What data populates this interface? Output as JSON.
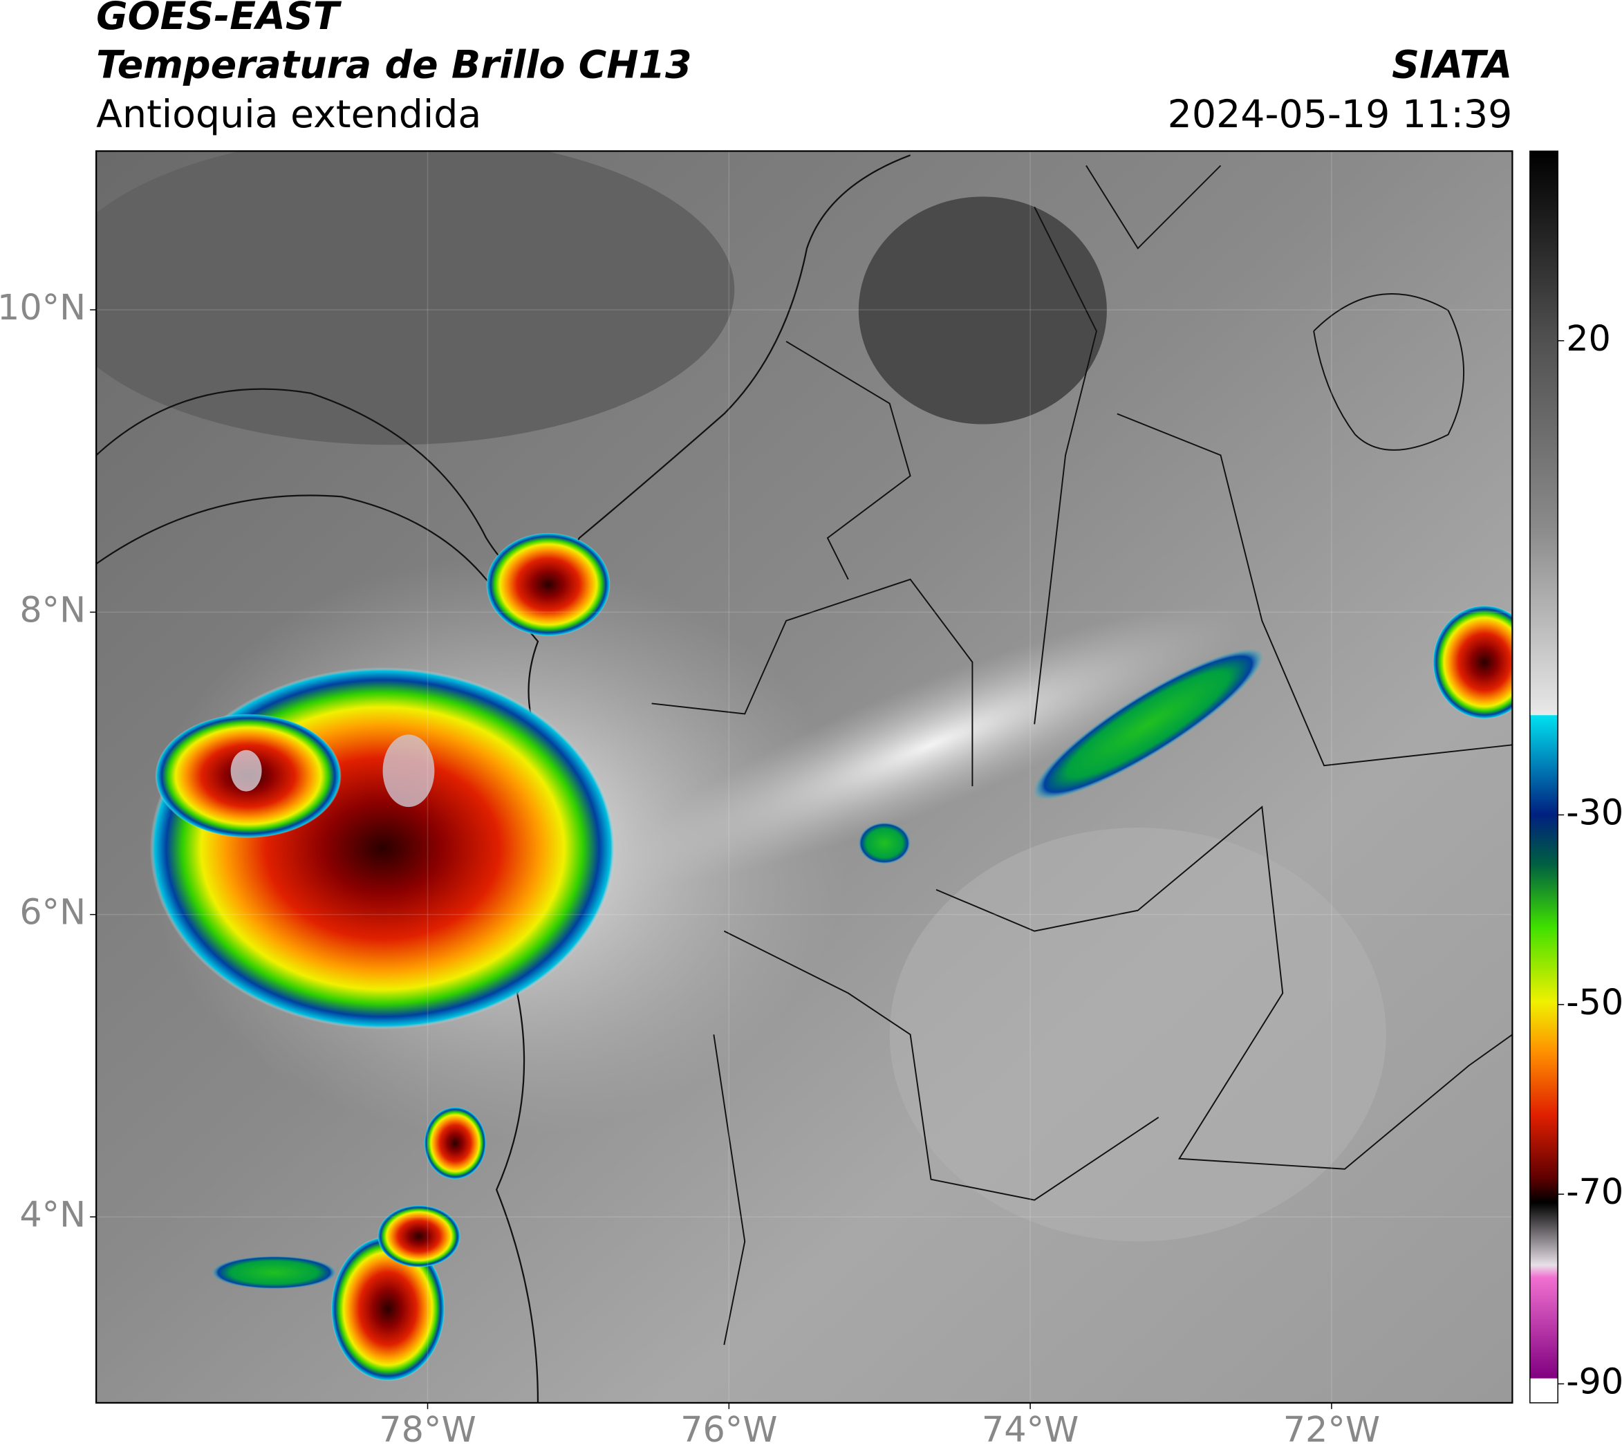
{
  "header": {
    "title": "GOES-EAST",
    "subtitle": "Temperatura de Brillo CH13",
    "region": "Antioquia extendida",
    "source": "SIATA",
    "timestamp": "2024-05-19 11:39"
  },
  "map": {
    "xlim": [
      -80.2,
      -70.8
    ],
    "ylim": [
      2.77,
      11.05
    ],
    "xticks": [
      {
        "value": -78,
        "label": "78°W"
      },
      {
        "value": -76,
        "label": "76°W"
      },
      {
        "value": -74,
        "label": "74°W"
      },
      {
        "value": -72,
        "label": "72°W"
      }
    ],
    "yticks": [
      {
        "value": 4,
        "label": "4°N"
      },
      {
        "value": 6,
        "label": "6°N"
      },
      {
        "value": 8,
        "label": "8°N"
      },
      {
        "value": 10,
        "label": "10°N"
      }
    ],
    "grid": true
  },
  "colorbar": {
    "lim": [
      -92,
      40
    ],
    "ticks": [
      -90,
      -70,
      -50,
      -30,
      20
    ]
  }
}
